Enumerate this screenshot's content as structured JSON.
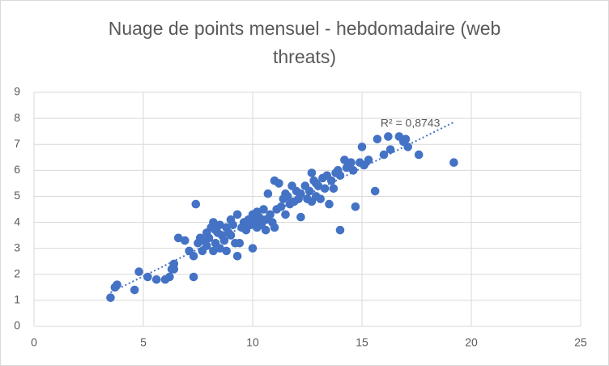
{
  "chart_data": {
    "type": "scatter",
    "title": "Nuage de points mensuel - hebdomadaire (web threats)",
    "x": [
      3.5,
      3.7,
      3.8,
      4.6,
      4.8,
      5.2,
      5.6,
      6.0,
      6.2,
      6.3,
      6.4,
      6.4,
      6.6,
      6.9,
      7.1,
      7.3,
      7.3,
      7.4,
      7.5,
      7.6,
      7.7,
      7.8,
      7.9,
      8.0,
      8.1,
      8.2,
      8.2,
      8.3,
      8.4,
      8.5,
      8.6,
      8.7,
      8.8,
      8.8,
      8.9,
      9.0,
      9.1,
      9.2,
      9.3,
      9.3,
      9.4,
      9.5,
      9.6,
      9.7,
      9.8,
      9.9,
      10.0,
      10.0,
      10.1,
      10.2,
      10.3,
      10.4,
      10.5,
      10.6,
      10.6,
      10.7,
      10.8,
      10.9,
      11.0,
      11.0,
      11.1,
      11.2,
      11.3,
      11.4,
      11.5,
      11.6,
      11.7,
      11.8,
      11.9,
      12.0,
      12.1,
      12.2,
      12.2,
      12.4,
      12.5,
      12.6,
      12.7,
      12.7,
      12.8,
      12.9,
      13.0,
      13.1,
      13.2,
      13.3,
      13.4,
      13.5,
      13.6,
      13.7,
      13.9,
      14.0,
      14.0,
      14.2,
      14.3,
      14.5,
      14.6,
      14.7,
      14.9,
      15.0,
      15.1,
      15.3,
      15.6,
      15.7,
      16.0,
      16.2,
      16.3,
      16.7,
      16.9,
      17.0,
      17.1,
      17.6,
      19.2,
      8.5,
      9.0,
      10.2,
      11.5,
      12.9,
      13.8,
      7.9,
      8.3
    ],
    "series": [
      {
        "color": "#4472c4",
        "values": [
          1.1,
          1.5,
          1.6,
          1.4,
          2.1,
          1.9,
          1.8,
          1.8,
          1.9,
          2.2,
          2.4,
          2.2,
          3.4,
          3.3,
          2.9,
          2.7,
          1.9,
          4.7,
          3.2,
          3.4,
          2.9,
          3.3,
          3.1,
          3.4,
          3.8,
          4.0,
          2.9,
          3.2,
          3.6,
          3.0,
          3.5,
          3.3,
          2.9,
          3.8,
          3.6,
          4.1,
          3.9,
          3.2,
          4.3,
          2.7,
          3.2,
          3.8,
          4.0,
          3.7,
          4.1,
          3.9,
          4.3,
          3.0,
          4.0,
          3.8,
          4.2,
          3.9,
          4.5,
          4.1,
          3.7,
          5.1,
          4.3,
          4.0,
          5.6,
          3.8,
          4.5,
          5.5,
          4.6,
          4.9,
          4.3,
          5.0,
          4.7,
          5.4,
          4.8,
          5.2,
          4.9,
          5.1,
          4.2,
          5.4,
          4.9,
          5.2,
          5.9,
          4.8,
          5.6,
          5.0,
          5.4,
          4.9,
          5.7,
          5.3,
          5.8,
          4.7,
          5.6,
          5.3,
          6.0,
          5.8,
          3.7,
          6.4,
          6.1,
          6.3,
          6.0,
          4.6,
          6.3,
          6.9,
          6.2,
          6.4,
          5.2,
          7.2,
          6.6,
          7.3,
          6.8,
          7.3,
          7.1,
          7.2,
          6.9,
          6.6,
          6.3,
          3.9,
          3.5,
          4.4,
          5.1,
          5.5,
          5.9,
          3.6,
          3.7
        ]
      }
    ],
    "trendline": {
      "label": "R² = 0,8743",
      "x": [
        3.5,
        19.2
      ],
      "y": [
        1.3,
        7.85
      ]
    },
    "xlim": [
      0,
      25
    ],
    "xticks": [
      0,
      5,
      10,
      15,
      20,
      25
    ],
    "ylim": [
      0,
      9
    ],
    "yticks": [
      0,
      1,
      2,
      3,
      4,
      5,
      6,
      7,
      8,
      9
    ],
    "grid": true
  }
}
